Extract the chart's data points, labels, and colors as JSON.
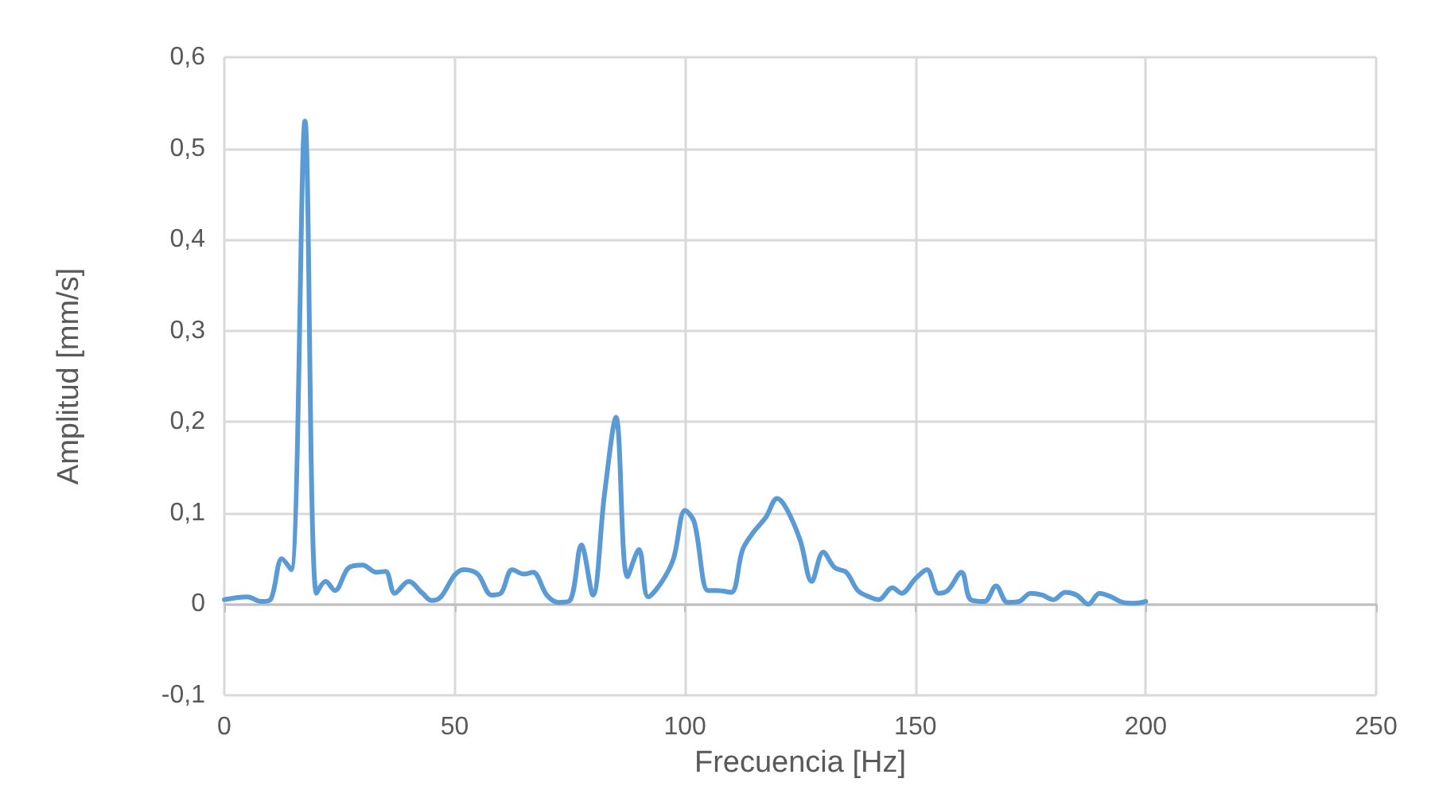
{
  "chart_data": {
    "type": "line",
    "xlabel": "Frecuencia [Hz]",
    "ylabel": "Amplitud [mm/s]",
    "x": [
      0,
      5,
      8,
      10,
      12.5,
      14.5,
      17.5,
      20,
      22,
      24,
      27,
      30,
      33,
      35,
      37,
      40,
      43,
      45,
      47,
      50,
      52,
      55,
      58,
      60,
      62.5,
      65,
      67,
      70,
      72.5,
      75,
      77.5,
      80,
      82.5,
      85,
      87.5,
      90,
      92,
      95,
      97.5,
      100,
      102,
      105,
      107,
      110,
      112.5,
      115,
      117.5,
      120,
      122,
      125,
      127.5,
      130,
      132.5,
      135,
      137.5,
      140,
      142,
      145,
      147,
      150,
      152.5,
      155,
      157,
      160,
      162,
      165,
      167.5,
      170,
      172.5,
      175,
      177.5,
      180,
      182.5,
      185,
      187.5,
      190,
      192.5,
      195,
      197.5,
      200
    ],
    "series": [
      {
        "color": "#5b9bd5",
        "values": [
          0.005,
          0.008,
          0.003,
          0.005,
          0.05,
          0.038,
          0.53,
          0.012,
          0.025,
          0.015,
          0.04,
          0.043,
          0.035,
          0.036,
          0.012,
          0.025,
          0.012,
          0.004,
          0.008,
          0.032,
          0.038,
          0.033,
          0.01,
          0.012,
          0.038,
          0.033,
          0.035,
          0.01,
          0.002,
          0.004,
          0.065,
          0.01,
          0.12,
          0.205,
          0.03,
          0.06,
          0.008,
          0.025,
          0.05,
          0.103,
          0.09,
          0.015,
          0.015,
          0.013,
          0.06,
          0.08,
          0.095,
          0.116,
          0.105,
          0.07,
          0.025,
          0.057,
          0.04,
          0.035,
          0.015,
          0.008,
          0.005,
          0.018,
          0.012,
          0.028,
          0.038,
          0.012,
          0.015,
          0.035,
          0.005,
          0.003,
          0.02,
          0.002,
          0.003,
          0.012,
          0.01,
          0.005,
          0.013,
          0.01,
          0.0,
          0.012,
          0.008,
          0.002,
          0.001,
          0.003
        ]
      }
    ],
    "xlim": [
      0,
      250
    ],
    "xticks": [
      0,
      50,
      100,
      150,
      200,
      250
    ],
    "ylim": [
      -0.1,
      0.6
    ],
    "yticks": [
      {
        "value": -0.1,
        "label": "-0,1"
      },
      0,
      {
        "value": 0.1,
        "label": "0,1"
      },
      {
        "value": 0.2,
        "label": "0,2"
      },
      {
        "value": 0.3,
        "label": "0,3"
      },
      {
        "value": 0.4,
        "label": "0,4"
      },
      {
        "value": 0.5,
        "label": "0,5"
      },
      {
        "value": 0.6,
        "label": "0,6"
      }
    ],
    "grid": true,
    "marker": "none",
    "line_style": "solid"
  }
}
